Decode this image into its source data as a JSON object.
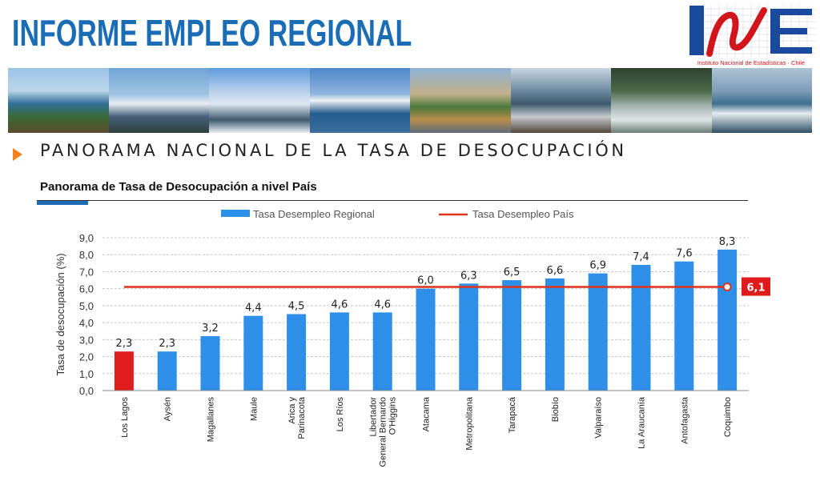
{
  "header": {
    "title": "INFORME EMPLEO REGIONAL",
    "logo_text": "Instituto Nacional de Estadísticas · Chile"
  },
  "section": {
    "title": "PANORAMA NACIONAL DE LA TASA DE DESOCUPACIÓN"
  },
  "colors": {
    "bar": "#2d8fe8",
    "bar_highlight": "#e11c1c",
    "country_line": "#e0311c",
    "accent": "#1a6db5",
    "arrow": "#f5821f"
  },
  "chart_data": {
    "type": "bar",
    "title": "Panorama de Tasa de Desocupación  a nivel País",
    "ylabel": "Tasa de desocupación (%)",
    "xlabel": "",
    "ylim": [
      0,
      9
    ],
    "yticks": [
      "0,0",
      "1,0",
      "2,0",
      "3,0",
      "4,0",
      "5,0",
      "6,0",
      "7,0",
      "8,0",
      "9,0"
    ],
    "grid": true,
    "legend_position": "top",
    "categories": [
      "Los Lagos",
      "Aysén",
      "Magallanes",
      "Maule",
      "Arica y Parinacota",
      "Los Ríos",
      "Libertador General Bernardo O'Higgins",
      "Atacama",
      "Metropolitana",
      "Tarapacá",
      "Biobío",
      "Valparaíso",
      "La Araucanía",
      "Antofagasta",
      "Coquimbo"
    ],
    "category_label_lines": [
      [
        "Los Lagos"
      ],
      [
        "Aysén"
      ],
      [
        "Magallanes"
      ],
      [
        "Maule"
      ],
      [
        "Arica y",
        "Parinacota"
      ],
      [
        "Los Ríos"
      ],
      [
        "Libertador",
        "General Bernardo",
        "O'Higgins"
      ],
      [
        "Atacama"
      ],
      [
        "Metropolitana"
      ],
      [
        "Tarapacá"
      ],
      [
        "Biobío"
      ],
      [
        "Valparaíso"
      ],
      [
        "La Araucanía"
      ],
      [
        "Antofagasta"
      ],
      [
        "Coquimbo"
      ]
    ],
    "series": [
      {
        "name": "Tasa Desempleo Regional",
        "values": [
          2.3,
          2.3,
          3.2,
          4.4,
          4.5,
          4.6,
          4.6,
          6.0,
          6.3,
          6.5,
          6.6,
          6.9,
          7.4,
          7.6,
          8.3
        ]
      },
      {
        "name": "Tasa Desempleo País",
        "value": 6.1
      }
    ],
    "data_labels": [
      "2,3",
      "2,3",
      "3,2",
      "4,4",
      "4,5",
      "4,6",
      "4,6",
      "6,0",
      "6,3",
      "6,5",
      "6,6",
      "6,9",
      "7,4",
      "7,6",
      "8,3"
    ],
    "highlighted_category": "Los Lagos",
    "country_label": "6,1"
  }
}
